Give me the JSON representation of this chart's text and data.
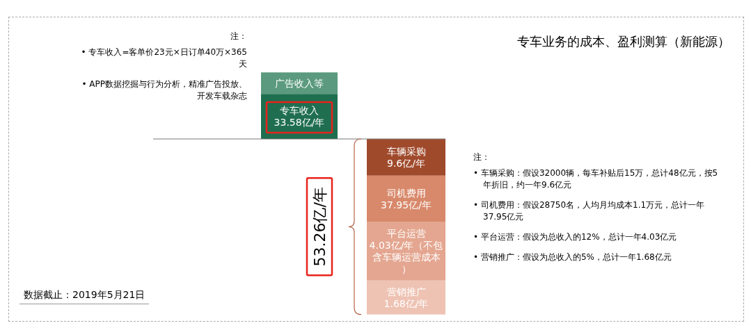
{
  "chart_data": {
    "type": "other",
    "title": "专车业务的成本、盈利测算（新能源）",
    "categories": [
      "专车收入",
      "广告收入等",
      "车辆采购",
      "司机费用",
      "平台运营",
      "营销推广"
    ],
    "values": [
      33.58,
      null,
      9.6,
      37.95,
      4.03,
      1.68
    ],
    "value_labels": [
      "33.58亿/年",
      null,
      "9.6亿/年",
      "37.95亿/年",
      "4.03亿/年（不包含车辆运营成本）",
      "1.68亿/年"
    ],
    "colors": [
      "#1f6e50",
      "#5b9a7e",
      "#a04a2c",
      "#d8896b",
      "#e4a690",
      "#eec3b4"
    ],
    "totals": [
      "53.26亿/年"
    ],
    "annotations": [
      "注：",
      "• 专车收入=客单价23元×日订单40万×365天",
      "• APP数据挖掘与行为分析，精准广告投放、开发车载杂志",
      "注：",
      "• 车辆采购：假设32000辆，每车补贴后15万，总计48亿元，按5年折旧，约一年9.6亿元",
      "• 司机费用：假设28750名，人均月均成本1.1万元，总计一年37.95亿元",
      "• 平台运营：假设为总收入的12%，总计一年4.03亿元",
      "• 营销推广：假设为总收入的5%，总计一年1.68亿元",
      "数据截止：2019年5月21日"
    ]
  }
}
